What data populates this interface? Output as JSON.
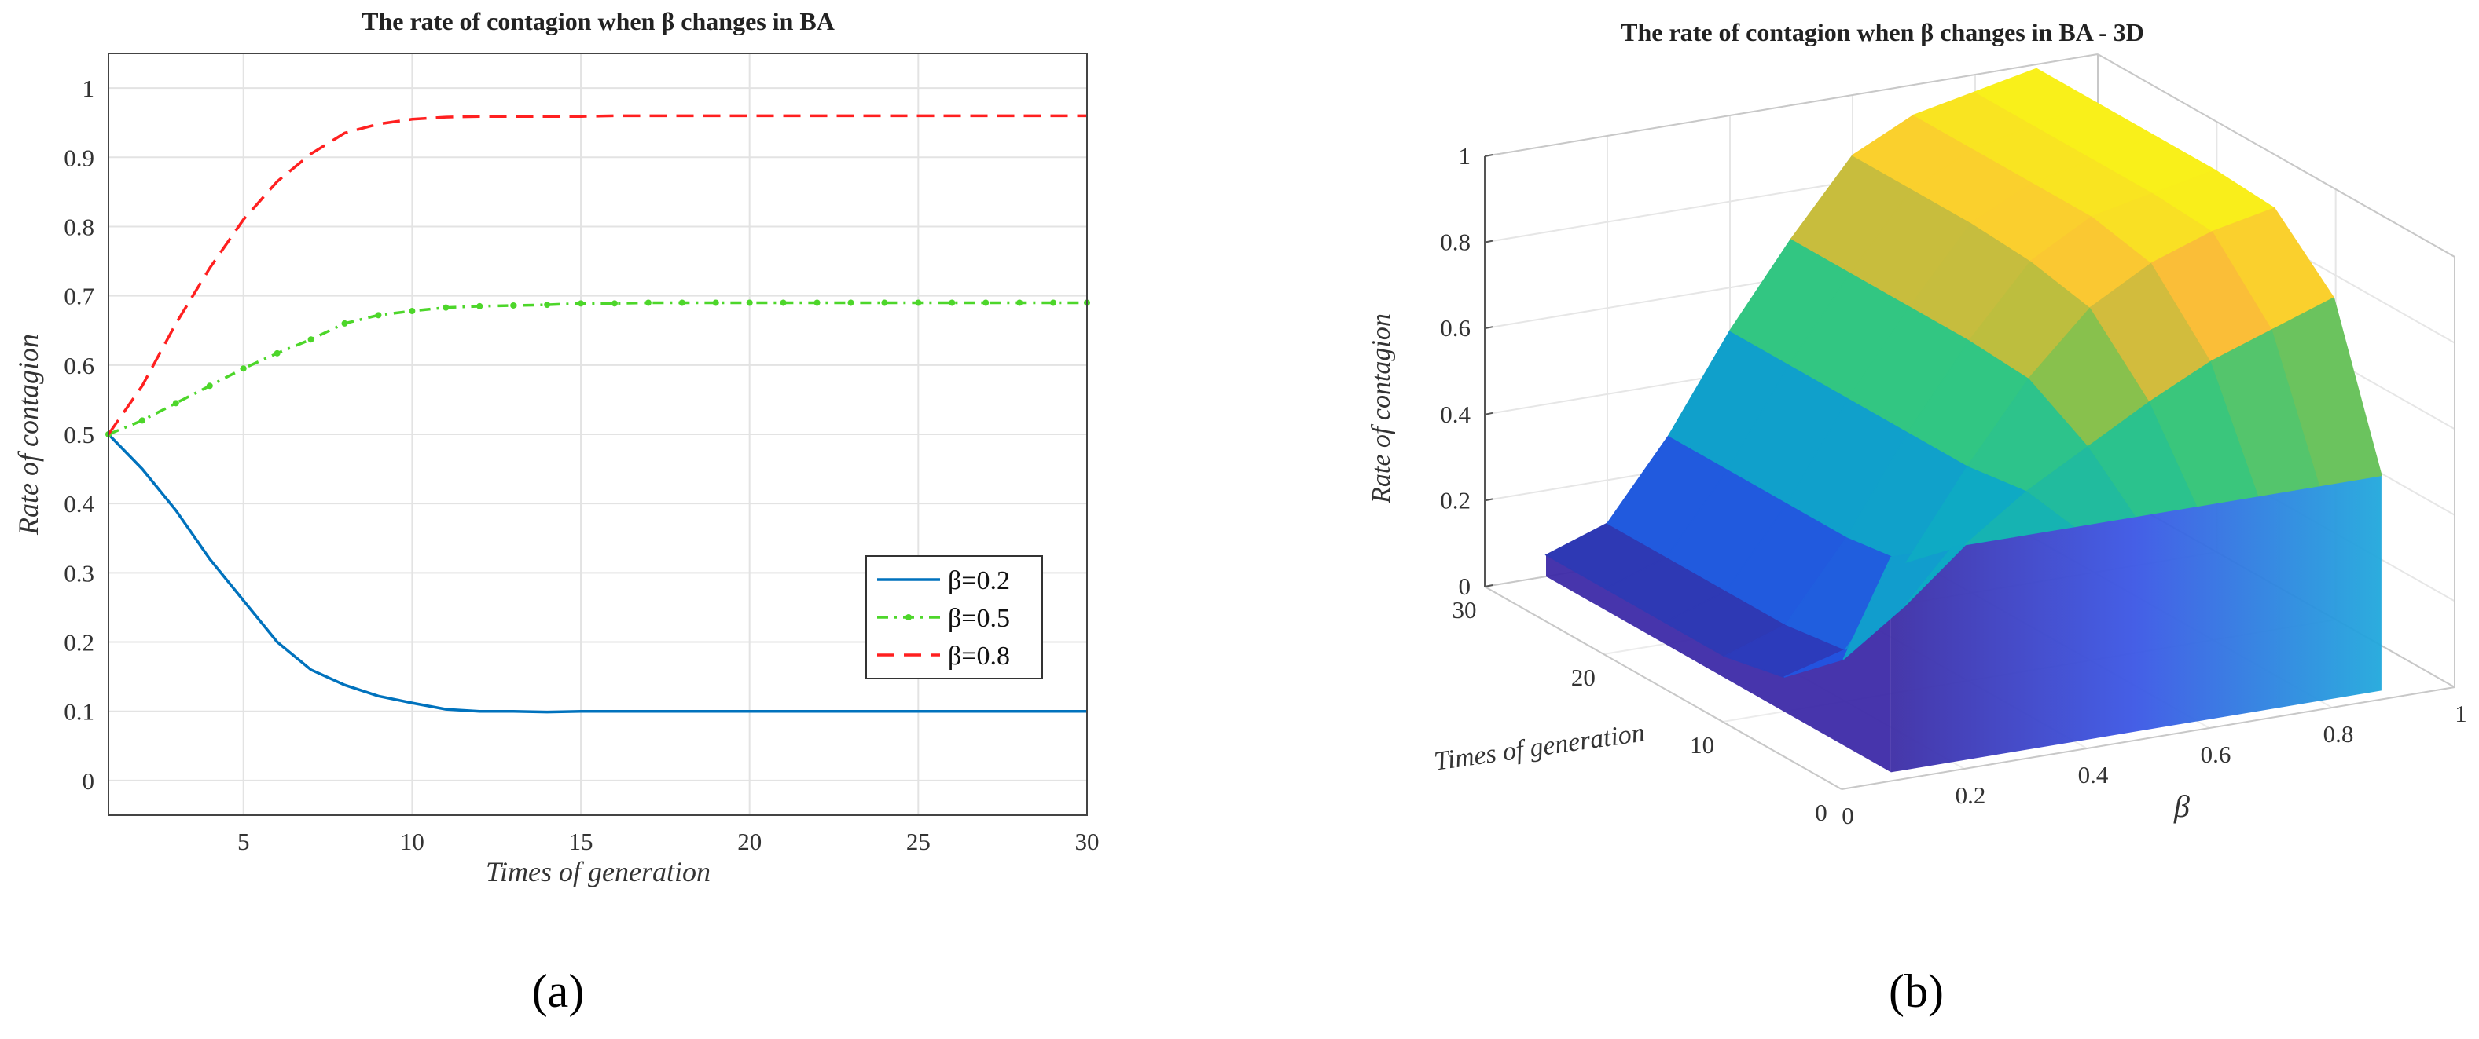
{
  "figure": {
    "panel_a_label": "(a)",
    "panel_b_label": "(b)"
  },
  "chart_data": [
    {
      "type": "line",
      "title": "The rate of contagion when β changes in BA",
      "xlabel": "Times of generation",
      "ylabel": "Rate of contagion",
      "xlim": [
        1,
        30
      ],
      "ylim": [
        -0.05,
        1.05
      ],
      "xticks": [
        5,
        10,
        15,
        20,
        25,
        30
      ],
      "yticks": [
        0,
        0.1,
        0.2,
        0.3,
        0.4,
        0.5,
        0.6,
        0.7,
        0.8,
        0.9,
        1
      ],
      "grid": true,
      "legend_position": "right",
      "x": [
        1,
        2,
        3,
        4,
        5,
        6,
        7,
        8,
        9,
        10,
        11,
        12,
        13,
        14,
        15,
        16,
        17,
        18,
        19,
        20,
        21,
        22,
        23,
        24,
        25,
        26,
        27,
        28,
        29,
        30
      ],
      "series": [
        {
          "name": "β=0.2",
          "color": "#0072bd",
          "style": "solid",
          "values": [
            0.5,
            0.45,
            0.39,
            0.32,
            0.26,
            0.2,
            0.16,
            0.138,
            0.122,
            0.112,
            0.103,
            0.1,
            0.1,
            0.099,
            0.1,
            0.1,
            0.1,
            0.1,
            0.1,
            0.1,
            0.1,
            0.1,
            0.1,
            0.1,
            0.1,
            0.1,
            0.1,
            0.1,
            0.1,
            0.1
          ]
        },
        {
          "name": "β=0.5",
          "color": "#4dd62a",
          "style": "dashdot",
          "values": [
            0.5,
            0.52,
            0.545,
            0.57,
            0.595,
            0.617,
            0.637,
            0.66,
            0.672,
            0.678,
            0.683,
            0.685,
            0.686,
            0.687,
            0.689,
            0.689,
            0.69,
            0.69,
            0.69,
            0.69,
            0.69,
            0.69,
            0.69,
            0.69,
            0.69,
            0.69,
            0.69,
            0.69,
            0.69,
            0.69
          ]
        },
        {
          "name": "β=0.8",
          "color": "#ff2020",
          "style": "dashed",
          "values": [
            0.5,
            0.57,
            0.66,
            0.74,
            0.81,
            0.865,
            0.905,
            0.935,
            0.948,
            0.955,
            0.958,
            0.959,
            0.959,
            0.959,
            0.959,
            0.96,
            0.96,
            0.96,
            0.96,
            0.96,
            0.96,
            0.96,
            0.96,
            0.96,
            0.96,
            0.96,
            0.96,
            0.96,
            0.96,
            0.96
          ]
        }
      ]
    },
    {
      "type": "surface",
      "title": "The rate of contagion when β changes in BA - 3D",
      "xlabel": "β",
      "ylabel": "Times of generation",
      "zlabel": "Rate of contagion",
      "xlim": [
        0,
        1
      ],
      "ylim": [
        0,
        30
      ],
      "zlim": [
        0,
        1
      ],
      "xticks": [
        0,
        0.2,
        0.4,
        0.6,
        0.8,
        1
      ],
      "yticks": [
        0,
        10,
        20,
        30
      ],
      "zticks": [
        0,
        0.2,
        0.4,
        0.6,
        0.8,
        1
      ],
      "grid": true,
      "colormap": "parula",
      "beta": [
        0.1,
        0.2,
        0.3,
        0.4,
        0.5,
        0.6,
        0.7,
        0.8,
        0.9
      ],
      "generations": [
        1,
        5,
        10,
        15,
        20,
        25,
        30
      ],
      "values": [
        [
          0.5,
          0.5,
          0.5,
          0.5,
          0.5,
          0.5,
          0.5,
          0.5,
          0.5
        ],
        [
          0.2,
          0.3,
          0.42,
          0.52,
          0.6,
          0.68,
          0.75,
          0.8,
          0.85
        ],
        [
          0.08,
          0.12,
          0.3,
          0.5,
          0.68,
          0.82,
          0.9,
          0.95,
          0.98
        ],
        [
          0.05,
          0.1,
          0.28,
          0.5,
          0.69,
          0.85,
          0.93,
          0.96,
          0.99
        ],
        [
          0.05,
          0.1,
          0.28,
          0.5,
          0.69,
          0.86,
          0.93,
          0.96,
          0.99
        ],
        [
          0.05,
          0.1,
          0.28,
          0.5,
          0.69,
          0.86,
          0.93,
          0.96,
          0.99
        ],
        [
          0.05,
          0.1,
          0.28,
          0.5,
          0.69,
          0.86,
          0.93,
          0.96,
          0.99
        ]
      ]
    }
  ]
}
